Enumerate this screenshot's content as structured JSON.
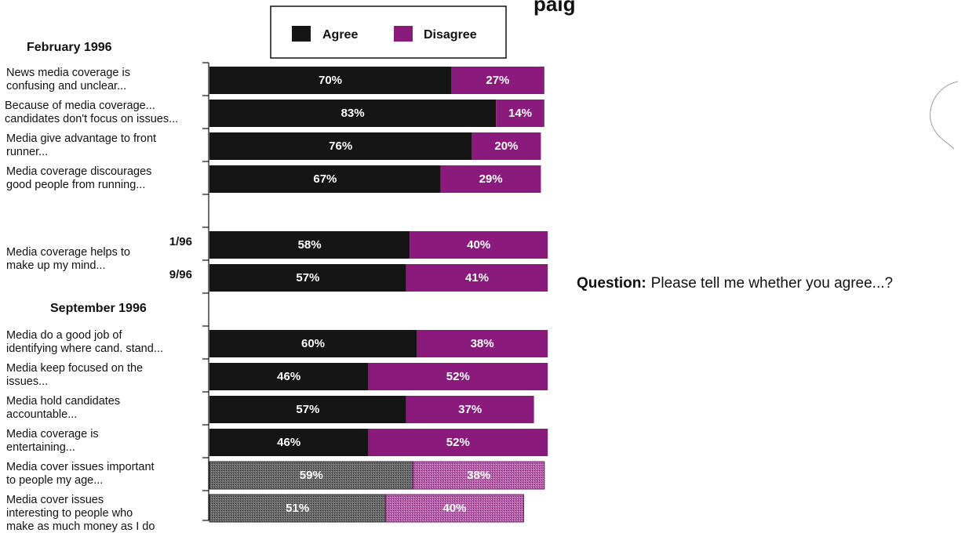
{
  "title_fragment": "paig",
  "question": {
    "label": "Question:",
    "text": "Please tell me whether you agree...?"
  },
  "colors": {
    "agree": "#151515",
    "disagree": "#8b1a7d",
    "agree_light": "#5a5a5a",
    "disagree_light": "#b25aa6"
  },
  "chart_data": {
    "type": "bar",
    "orientation": "horizontal",
    "stacked": true,
    "xlim": [
      0,
      100
    ],
    "legend": {
      "placement": "top",
      "entries": [
        "Agree",
        "Disagree"
      ]
    },
    "sections": [
      "February 1996",
      "September 1996"
    ],
    "items": [
      {
        "section": "February 1996",
        "label": [
          "News media coverage is",
          "confusing and unclear..."
        ],
        "agree": 70,
        "disagree": 27
      },
      {
        "section": "February 1996",
        "label": [
          "Because of media coverage...",
          "candidates don't focus on issues..."
        ],
        "agree": 83,
        "disagree": 14
      },
      {
        "section": "February 1996",
        "label": [
          "Media give advantage to front",
          "runner..."
        ],
        "agree": 76,
        "disagree": 20
      },
      {
        "section": "February 1996",
        "label": [
          "Media coverage discourages",
          "good people from running..."
        ],
        "agree": 67,
        "disagree": 29
      },
      {
        "label": [
          "Media coverage helps to",
          "make up my mind..."
        ],
        "group": true,
        "bars": [
          {
            "marker": "1/96",
            "agree": 58,
            "disagree": 40
          },
          {
            "marker": "9/96",
            "agree": 57,
            "disagree": 41
          }
        ]
      },
      {
        "section": "September 1996",
        "label": [
          "Media do a good job of",
          "identifying where cand. stand..."
        ],
        "agree": 60,
        "disagree": 38
      },
      {
        "section": "September 1996",
        "label": [
          "Media keep focused on the",
          "issues..."
        ],
        "agree": 46,
        "disagree": 52
      },
      {
        "section": "September 1996",
        "label": [
          "Media hold candidates",
          "accountable..."
        ],
        "agree": 57,
        "disagree": 37
      },
      {
        "section": "September 1996",
        "label": [
          "Media coverage is",
          "entertaining..."
        ],
        "agree": 46,
        "disagree": 52
      },
      {
        "section": "September 1996",
        "label": [
          "Media cover issues important",
          "to people my age..."
        ],
        "agree": 59,
        "disagree": 38,
        "style": "light"
      },
      {
        "section": "September 1996",
        "label": [
          "Media cover issues",
          "interesting to people who",
          "make as much money as I do"
        ],
        "agree": 51,
        "disagree": 40,
        "style": "light"
      }
    ]
  }
}
